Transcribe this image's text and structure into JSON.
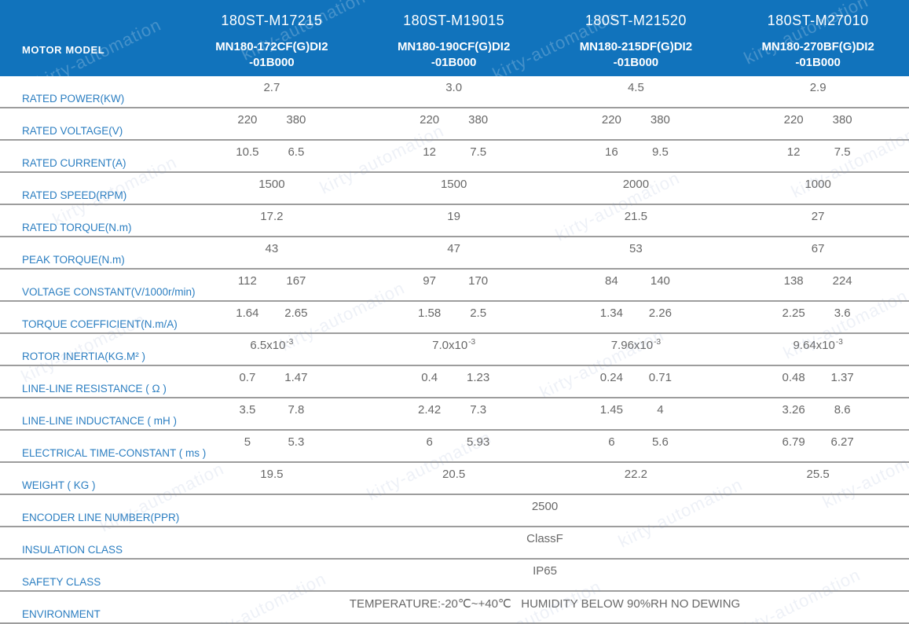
{
  "watermark": {
    "text": "kirty-automation"
  },
  "colors": {
    "header_bg": "#1173BC",
    "header_text": "#FFFFFF",
    "label_text": "#2B7EC1",
    "value_text": "#686868",
    "divider": "#9D9D9D"
  },
  "header": {
    "corner_label": "MOTOR MODEL",
    "models": [
      {
        "name": "180ST-M17215",
        "code": "MN180-172CF(G)DI2",
        "code2": "-01B000"
      },
      {
        "name": "180ST-M19015",
        "code": "MN180-190CF(G)DI2",
        "code2": "-01B000"
      },
      {
        "name": "180ST-M21520",
        "code": "MN180-215DF(G)DI2",
        "code2": "-01B000"
      },
      {
        "name": "180ST-M27010",
        "code": "MN180-270BF(G)DI2",
        "code2": "-01B000"
      }
    ]
  },
  "rows": [
    {
      "label": "RATED POWER(KW)",
      "type": "single",
      "values": [
        "2.7",
        "3.0",
        "4.5",
        "2.9"
      ]
    },
    {
      "label": "RATED VOLTAGE(V)",
      "type": "dual",
      "values": [
        [
          "220",
          "380"
        ],
        [
          "220",
          "380"
        ],
        [
          "220",
          "380"
        ],
        [
          "220",
          "380"
        ]
      ]
    },
    {
      "label": "RATED CURRENT(A)",
      "type": "dual",
      "values": [
        [
          "10.5",
          "6.5"
        ],
        [
          "12",
          "7.5"
        ],
        [
          "16",
          "9.5"
        ],
        [
          "12",
          "7.5"
        ]
      ]
    },
    {
      "label": "RATED SPEED(RPM)",
      "type": "single",
      "values": [
        "1500",
        "1500",
        "2000",
        "1000"
      ]
    },
    {
      "label": "RATED TORQUE(N.m)",
      "type": "single",
      "values": [
        "17.2",
        "19",
        "21.5",
        "27"
      ]
    },
    {
      "label": "PEAK TORQUE(N.m)",
      "type": "single",
      "values": [
        "43",
        "47",
        "53",
        "67"
      ]
    },
    {
      "label": "VOLTAGE CONSTANT(V/1000r/min)",
      "type": "dual",
      "values": [
        [
          "112",
          "167"
        ],
        [
          "97",
          "170"
        ],
        [
          "84",
          "140"
        ],
        [
          "138",
          "224"
        ]
      ]
    },
    {
      "label": "TORQUE COEFFICIENT(N.m/A)",
      "type": "dual",
      "values": [
        [
          "1.64",
          "2.65"
        ],
        [
          "1.58",
          "2.5"
        ],
        [
          "1.34",
          "2.26"
        ],
        [
          "2.25",
          "3.6"
        ]
      ]
    },
    {
      "label": "ROTOR INERTIA(KG.M² )",
      "type": "single_sup",
      "values": [
        {
          "base": "6.5x10",
          "sup": "-3"
        },
        {
          "base": "7.0x10",
          "sup": "-3"
        },
        {
          "base": "7.96x10",
          "sup": "-3"
        },
        {
          "base": "9.64x10",
          "sup": "-3"
        }
      ]
    },
    {
      "label": "LINE-LINE RESISTANCE ( Ω )",
      "type": "dual",
      "values": [
        [
          "0.7",
          "1.47"
        ],
        [
          "0.4",
          "1.23"
        ],
        [
          "0.24",
          "0.71"
        ],
        [
          "0.48",
          "1.37"
        ]
      ]
    },
    {
      "label": "LINE-LINE INDUCTANCE ( mH )",
      "type": "dual",
      "values": [
        [
          "3.5",
          "7.8"
        ],
        [
          "2.42",
          "7.3"
        ],
        [
          "1.45",
          "4"
        ],
        [
          "3.26",
          "8.6"
        ]
      ]
    },
    {
      "label": "ELECTRICAL TIME-CONSTANT ( ms )",
      "type": "dual",
      "values": [
        [
          "5",
          "5.3"
        ],
        [
          "6",
          "5.93"
        ],
        [
          "6",
          "5.6"
        ],
        [
          "6.79",
          "6.27"
        ]
      ]
    },
    {
      "label": "WEIGHT ( KG )",
      "type": "single",
      "values": [
        "19.5",
        "20.5",
        "22.2",
        "25.5"
      ]
    },
    {
      "label": "ENCODER LINE NUMBER(PPR)",
      "type": "span",
      "value": "2500"
    },
    {
      "label": "INSULATION CLASS",
      "type": "span",
      "value": "ClassF"
    },
    {
      "label": "SAFETY CLASS",
      "type": "span",
      "value": "IP65"
    },
    {
      "label": "ENVIRONMENT",
      "type": "span",
      "value": "TEMPERATURE:-20℃~+40℃   HUMIDITY BELOW 90%RH NO DEWING"
    }
  ]
}
